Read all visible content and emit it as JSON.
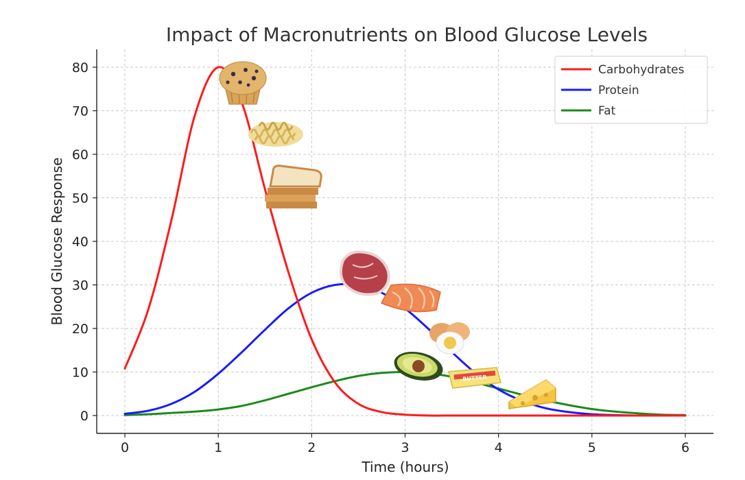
{
  "chart_data": {
    "type": "line",
    "title": "Impact of Macronutrients on Blood Glucose Levels",
    "xlabel": "Time (hours)",
    "ylabel": "Blood Glucose Response",
    "xlim": [
      0,
      6
    ],
    "ylim": [
      -4,
      84
    ],
    "xticks": [
      0,
      1,
      2,
      3,
      4,
      5,
      6
    ],
    "yticks": [
      0,
      10,
      20,
      30,
      40,
      50,
      60,
      70,
      80
    ],
    "grid": true,
    "legend_position": "top-right",
    "x": [
      0,
      0.25,
      0.5,
      0.75,
      1,
      1.25,
      1.5,
      1.75,
      2,
      2.25,
      2.5,
      2.75,
      3,
      3.25,
      3.5,
      3.75,
      4,
      4.25,
      4.5,
      4.75,
      5,
      5.25,
      5.5,
      5.75,
      6
    ],
    "series": [
      {
        "name": "Carbohydrates",
        "color": "#ff1a1a",
        "values": [
          10.8,
          24.3,
          45.0,
          69.0,
          80.0,
          72.0,
          52.0,
          33.0,
          17.5,
          7.6,
          2.7,
          0.8,
          0.2,
          0,
          0,
          0,
          0,
          0,
          0,
          0,
          0,
          0,
          0,
          0,
          0
        ]
      },
      {
        "name": "Protein",
        "color": "#1a1aff",
        "values": [
          0.4,
          1.1,
          2.7,
          5.5,
          9.6,
          14.5,
          19.7,
          24.6,
          28.2,
          30.0,
          30.0,
          28.2,
          24.6,
          19.9,
          14.6,
          9.8,
          6.0,
          3.4,
          1.7,
          0.8,
          0.3,
          0.1,
          0,
          0,
          0
        ]
      },
      {
        "name": "Fat",
        "color": "#1a8a1a",
        "values": [
          0.1,
          0.3,
          0.6,
          0.9,
          1.4,
          2.2,
          3.5,
          5.0,
          6.5,
          7.9,
          9.1,
          9.8,
          10.0,
          9.7,
          8.9,
          7.6,
          6.2,
          4.8,
          3.5,
          2.4,
          1.5,
          0.9,
          0.5,
          0.2,
          0.1
        ]
      }
    ]
  },
  "food_icons": [
    {
      "name": "muffin-icon"
    },
    {
      "name": "pasta-icon"
    },
    {
      "name": "bread-icon"
    },
    {
      "name": "steak-icon"
    },
    {
      "name": "salmon-icon"
    },
    {
      "name": "eggs-icon"
    },
    {
      "name": "avocado-icon"
    },
    {
      "name": "butter-icon",
      "label": "BUTTER"
    },
    {
      "name": "cheese-icon"
    }
  ]
}
